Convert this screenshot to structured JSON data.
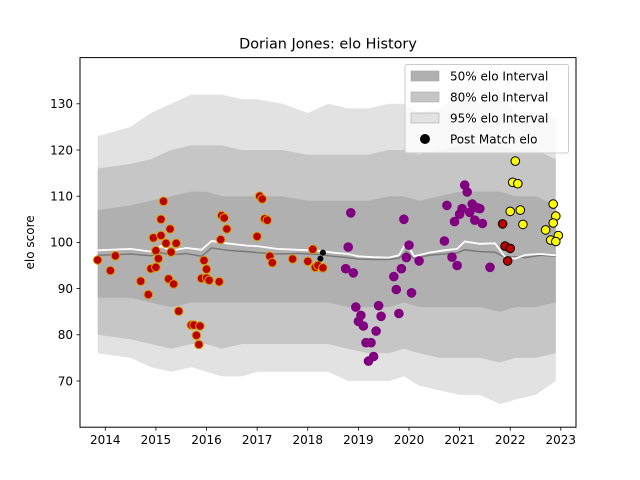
{
  "chart_data": {
    "type": "scatter",
    "title": "Dorian Jones: elo History",
    "xlabel": "",
    "ylabel": "elo score",
    "xlim": [
      2013.5,
      2023.3
    ],
    "ylim": [
      60,
      140
    ],
    "xticks": [
      2014,
      2015,
      2016,
      2017,
      2018,
      2019,
      2020,
      2021,
      2022,
      2023
    ],
    "yticks": [
      70,
      80,
      90,
      100,
      110,
      120,
      130
    ],
    "grid": false,
    "legend_position": "top-right",
    "legend": [
      {
        "label": "50% elo Interval",
        "kind": "band",
        "color": "#b0b0b0"
      },
      {
        "label": "80% elo Interval",
        "kind": "band",
        "color": "#c6c6c6"
      },
      {
        "label": "95% elo Interval",
        "kind": "band",
        "color": "#e2e2e2"
      },
      {
        "label": "Post Match elo",
        "kind": "marker",
        "color": "#000000"
      }
    ],
    "bands": {
      "x": [
        2013.85,
        2014.5,
        2014.9,
        2015.3,
        2015.7,
        2016.0,
        2016.3,
        2016.7,
        2017.0,
        2017.5,
        2018.0,
        2018.4,
        2018.8,
        2019.2,
        2019.6,
        2019.9,
        2020.2,
        2020.6,
        2021.0,
        2021.4,
        2021.8,
        2022.1,
        2022.5,
        2022.9
      ],
      "p95": {
        "lower": [
          76,
          75,
          73,
          72,
          73,
          72,
          71,
          71,
          72,
          72,
          72,
          72,
          70,
          70,
          70,
          71,
          69,
          68,
          67,
          67,
          65,
          66,
          67,
          70
        ],
        "upper": [
          123,
          125,
          128,
          130,
          132,
          132,
          132,
          131,
          131,
          130,
          128,
          130,
          129,
          129,
          130,
          130,
          128,
          129,
          132,
          130,
          133,
          128,
          128,
          127
        ]
      },
      "p80": {
        "lower": [
          80,
          79,
          78,
          77,
          78,
          78,
          77,
          78,
          78,
          78,
          78,
          78,
          77,
          76,
          76,
          77,
          76,
          75,
          75,
          75,
          74,
          75,
          75,
          76
        ],
        "upper": [
          116,
          117,
          118,
          120,
          121,
          121,
          121,
          120,
          120,
          120,
          119,
          119,
          119,
          119,
          120,
          120,
          119,
          120,
          121,
          121,
          121,
          120,
          120,
          118
        ]
      },
      "p50": {
        "lower": [
          88,
          88,
          87,
          86,
          87,
          87,
          87,
          87,
          87,
          87,
          87,
          87,
          86,
          86,
          86,
          87,
          86,
          86,
          86,
          86,
          85,
          86,
          86,
          87
        ],
        "upper": [
          107,
          108,
          109,
          110,
          111,
          111,
          110,
          110,
          110,
          110,
          109,
          109,
          109,
          109,
          110,
          110,
          109,
          110,
          111,
          111,
          111,
          110,
          110,
          108
        ]
      }
    },
    "median_line": {
      "x": [
        2013.85,
        2014.5,
        2014.9,
        2015.1,
        2015.3,
        2015.6,
        2015.9,
        2016.1,
        2016.4,
        2016.8,
        2017.0,
        2017.4,
        2017.8,
        2018.2,
        2018.5,
        2018.8,
        2019.0,
        2019.3,
        2019.6,
        2019.8,
        2019.95,
        2020.1,
        2020.4,
        2020.7,
        2020.95,
        2021.1,
        2021.4,
        2021.7,
        2021.9,
        2022.1,
        2022.3,
        2022.6,
        2022.9
      ],
      "median": [
        98.3,
        98.6,
        98.0,
        99.2,
        98.2,
        98.8,
        98.4,
        100.3,
        99.8,
        99.3,
        99.2,
        98.6,
        98.4,
        98.2,
        97.8,
        97.5,
        97.0,
        96.8,
        96.7,
        97.2,
        100.0,
        97.0,
        97.8,
        98.3,
        98.6,
        100.2,
        99.7,
        99.8,
        96.8,
        96.5,
        97.3,
        97.5,
        97.2
      ],
      "mean": [
        97.2,
        97.5,
        97.1,
        97.8,
        97.3,
        97.6,
        97.0,
        98.8,
        98.3,
        98.0,
        97.8,
        97.5,
        97.6,
        97.4,
        97.0,
        96.7,
        96.4,
        96.3,
        96.3,
        96.6,
        98.0,
        96.5,
        97.2,
        97.5,
        97.7,
        98.4,
        98.0,
        97.9,
        96.7,
        96.9,
        96.7,
        97.2,
        97.0
      ]
    },
    "series": [
      {
        "color": "#d8a000",
        "fill": "#bb0000",
        "x": [
          2013.85,
          2014.1,
          2014.2,
          2014.7,
          2014.85,
          2014.9,
          2014.95,
          2015.0,
          2015.0,
          2015.05,
          2015.1,
          2015.1,
          2015.15,
          2015.2,
          2015.25,
          2015.28,
          2015.3,
          2015.35,
          2015.4,
          2015.45,
          2015.7,
          2015.75,
          2015.8,
          2015.85,
          2015.87,
          2015.9,
          2015.95,
          2016.0,
          2016.0,
          2016.05,
          2016.25,
          2016.28,
          2016.3,
          2016.35,
          2016.4,
          2017.0,
          2017.05,
          2017.1,
          2017.15,
          2017.2,
          2017.25,
          2017.3,
          2017.7,
          2018.0,
          2018.1,
          2018.15,
          2018.2,
          2018.3
        ],
        "y": [
          96.2,
          93.9,
          97.1,
          91.6,
          88.7,
          94.3,
          101.0,
          94.6,
          98.2,
          96.5,
          101.5,
          105.0,
          108.9,
          99.8,
          92.1,
          102.9,
          97.9,
          91.0,
          99.8,
          85.1,
          82.1,
          82.1,
          79.9,
          77.9,
          81.9,
          92.2,
          96.1,
          94.2,
          92.3,
          91.8,
          91.5,
          100.6,
          105.8,
          105.3,
          102.9,
          101.3,
          110.0,
          109.4,
          105.1,
          104.8,
          97.0,
          95.6,
          96.4,
          95.9,
          98.5,
          94.6,
          95.0,
          94.5
        ]
      },
      {
        "color": "#800080",
        "fill": "#800080",
        "x": [
          2018.75,
          2018.8,
          2018.85,
          2018.9,
          2018.95,
          2019.0,
          2019.05,
          2019.1,
          2019.15,
          2019.2,
          2019.25,
          2019.3,
          2019.35,
          2019.4,
          2019.45,
          2019.7,
          2019.75,
          2019.8,
          2019.85,
          2019.9,
          2019.95,
          2020.0,
          2020.05,
          2020.2,
          2020.7,
          2020.75,
          2020.85,
          2020.9,
          2020.95,
          2021.0,
          2021.05,
          2021.1,
          2021.15,
          2021.2,
          2021.25,
          2021.3,
          2021.35,
          2021.4,
          2021.45,
          2021.6
        ],
        "y": [
          94.3,
          99.0,
          106.4,
          93.4,
          86.0,
          82.9,
          84.2,
          81.9,
          78.3,
          74.3,
          78.3,
          75.3,
          80.8,
          86.3,
          84.0,
          92.6,
          89.8,
          84.6,
          94.3,
          105.0,
          96.7,
          99.4,
          89.1,
          96.0,
          100.3,
          108.0,
          96.8,
          104.5,
          95.0,
          106.1,
          107.3,
          112.4,
          110.9,
          106.5,
          108.3,
          104.8,
          107.5,
          107.3,
          104.1,
          94.6
        ]
      },
      {
        "color": "#000000",
        "fill": "#ffff00",
        "x": [
          2022.0,
          2022.05,
          2022.1,
          2022.15,
          2022.2,
          2022.25,
          2022.7,
          2022.8,
          2022.85,
          2022.9,
          2022.95
        ],
        "y": [
          106.7,
          113.0,
          117.6,
          112.7,
          107.0,
          103.9,
          102.7,
          100.5,
          108.3,
          105.7,
          101.5
        ]
      },
      {
        "color": "#000000",
        "fill": "#bb0000",
        "x": [
          2021.85,
          2021.9,
          2021.95,
          2022.0
        ],
        "y": [
          104.0,
          99.2,
          96.0,
          98.7
        ]
      }
    ],
    "extra_points": [
      {
        "x": 2022.85,
        "y": 104.2,
        "color": "#000000",
        "fill": "#ffff00"
      },
      {
        "x": 2022.9,
        "y": 100.2,
        "color": "#000000",
        "fill": "#ffff00"
      },
      {
        "x": 2018.25,
        "y": 96.5,
        "color": "#000000",
        "fill": "#000000"
      },
      {
        "x": 2018.3,
        "y": 97.8,
        "color": "#000000",
        "fill": "#000000"
      }
    ]
  }
}
